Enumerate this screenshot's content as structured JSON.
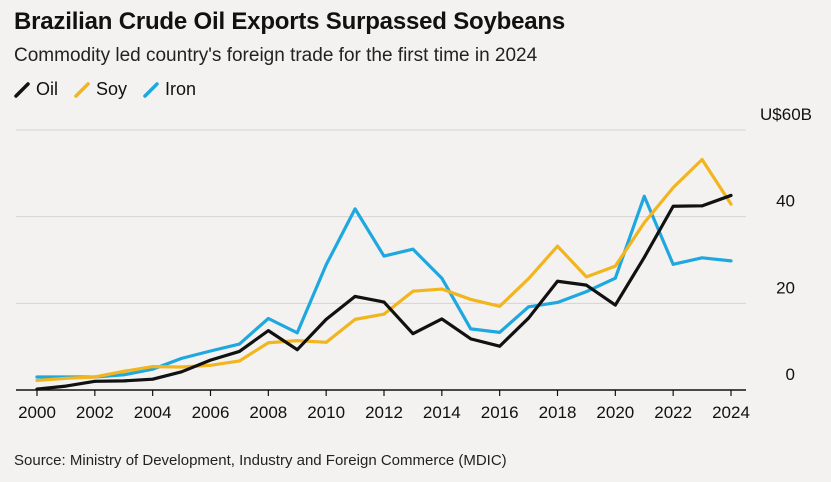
{
  "header": {
    "title": "Brazilian Crude Oil Exports Surpassed Soybeans",
    "subtitle": "Commodity led country's foreign trade for the first time in 2024"
  },
  "legend": [
    {
      "name": "Oil",
      "color": "#111111"
    },
    {
      "name": "Soy",
      "color": "#f2b51e"
    },
    {
      "name": "Iron",
      "color": "#1fa8e0"
    }
  ],
  "source": "Source: Ministry of Development, Industry and Foreign Commerce (MDIC)",
  "chart_data": {
    "type": "line",
    "title": "Brazilian Crude Oil Exports Surpassed Soybeans",
    "subtitle": "Commodity led country's foreign trade for the first time in 2024",
    "xlabel": "",
    "ylabel": "",
    "y_unit_label": "U$60B",
    "xlim": [
      2000,
      2024
    ],
    "ylim": [
      0,
      60
    ],
    "y_ticks": [
      0,
      20,
      40
    ],
    "y_tick_labels": [
      "0",
      "20",
      "40"
    ],
    "x_ticks": [
      2000,
      2002,
      2004,
      2006,
      2008,
      2010,
      2012,
      2014,
      2016,
      2018,
      2020,
      2022,
      2024
    ],
    "x_tick_labels": [
      "2000",
      "2002",
      "2004",
      "2006",
      "2008",
      "2010",
      "2012",
      "2014",
      "2016",
      "2018",
      "2020",
      "2022",
      "2024"
    ],
    "grid": "horizontal",
    "legend_position": "top-left",
    "x": [
      2000,
      2001,
      2002,
      2003,
      2004,
      2005,
      2006,
      2007,
      2008,
      2009,
      2010,
      2011,
      2012,
      2013,
      2014,
      2015,
      2016,
      2017,
      2018,
      2019,
      2020,
      2021,
      2022,
      2023,
      2024
    ],
    "series": [
      {
        "name": "Iron",
        "color": "#1fa8e0",
        "values": [
          3.0,
          3.0,
          3.0,
          3.5,
          4.8,
          7.3,
          9.0,
          10.6,
          16.5,
          13.2,
          28.9,
          41.8,
          30.9,
          32.5,
          25.8,
          14.1,
          13.3,
          19.2,
          20.2,
          22.7,
          25.8,
          44.7,
          29.0,
          30.5,
          29.8
        ]
      },
      {
        "name": "Soy",
        "color": "#f2b51e",
        "values": [
          2.2,
          2.7,
          3.0,
          4.3,
          5.4,
          5.3,
          5.7,
          6.7,
          10.9,
          11.4,
          11.0,
          16.3,
          17.5,
          22.8,
          23.3,
          20.9,
          19.3,
          25.7,
          33.2,
          26.1,
          28.6,
          38.6,
          46.7,
          53.2,
          42.9
        ]
      },
      {
        "name": "Oil",
        "color": "#111111",
        "values": [
          0.2,
          0.9,
          2.0,
          2.1,
          2.5,
          4.2,
          6.9,
          8.9,
          13.7,
          9.3,
          16.3,
          21.6,
          20.3,
          13.0,
          16.4,
          11.8,
          10.1,
          16.6,
          25.1,
          24.2,
          19.6,
          30.6,
          42.4,
          42.5,
          44.9
        ]
      }
    ]
  }
}
